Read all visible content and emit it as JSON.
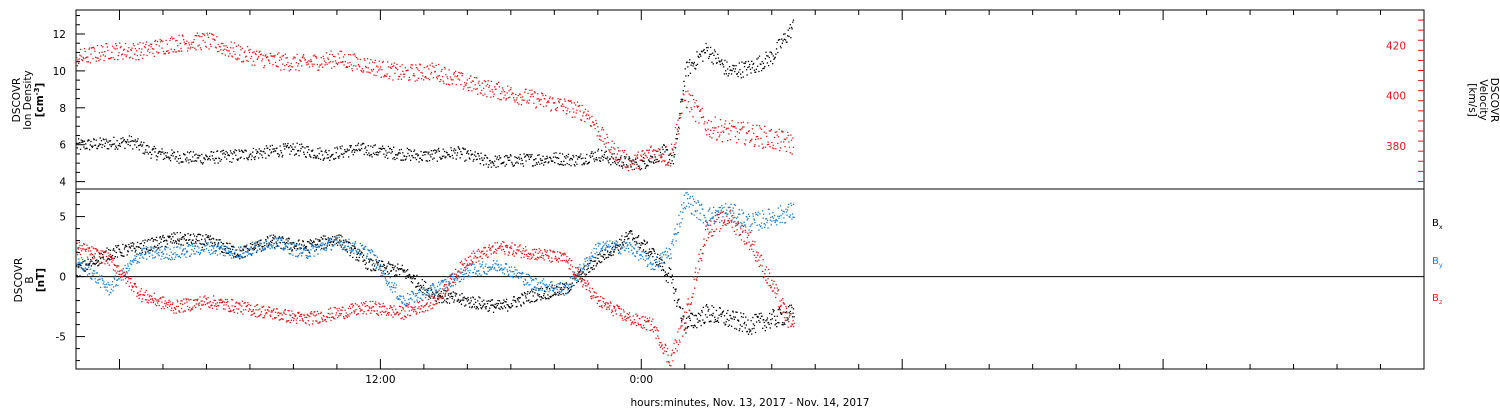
{
  "chart_data": [
    {
      "type": "scatter",
      "title": "",
      "xlabel": "",
      "x_range_hours": [
        -2,
        60
      ],
      "ylabel_left": [
        "DSCOVR",
        "Ion Density",
        "[cm",
        "-3",
        "]"
      ],
      "ylabel_right": [
        "DSCOVR",
        "Velocity",
        "[km/s]"
      ],
      "ylim_left": [
        3.6,
        13.3
      ],
      "ylim_right": [
        363,
        434
      ],
      "yticks_left": [
        4,
        6,
        8,
        10,
        12
      ],
      "yticks_right": [
        380,
        400,
        420
      ],
      "colors": {
        "density": "#000000",
        "velocity": "#e8181c"
      },
      "series": [
        {
          "axis": "left",
          "color": "#000000",
          "x": [
            -2,
            -0.5,
            0.5,
            1.5,
            2.5,
            3.5,
            5,
            6.5,
            8,
            9.5,
            11,
            12.5,
            14,
            15.5,
            17,
            18.5,
            20,
            21,
            22,
            23,
            24,
            25,
            25.5,
            26,
            27,
            28,
            29,
            30,
            31
          ],
          "y": [
            6.0,
            6.1,
            6.2,
            5.6,
            5.4,
            5.3,
            5.4,
            5.6,
            5.8,
            5.5,
            5.8,
            5.6,
            5.4,
            5.6,
            5.1,
            5.2,
            5.3,
            5.2,
            5.5,
            5.1,
            5.0,
            5.6,
            5.3,
            10.0,
            11.2,
            10.0,
            10.2,
            10.8,
            12.5
          ]
        },
        {
          "axis": "right",
          "color": "#e8181c",
          "x": [
            -2,
            -0.5,
            1,
            2.5,
            4,
            5.5,
            7,
            8.5,
            10,
            11.5,
            13,
            14.5,
            16,
            17.5,
            19,
            20.5,
            21.5,
            22.5,
            23.5,
            24.5,
            25.3,
            26,
            27,
            28,
            29,
            31
          ],
          "y": [
            415,
            418,
            418,
            421,
            422,
            417,
            414,
            413,
            415,
            412,
            409,
            410,
            405,
            402,
            399,
            396,
            393,
            380,
            373,
            378,
            376,
            400,
            388,
            386,
            385,
            381
          ]
        }
      ]
    },
    {
      "type": "scatter",
      "title": "",
      "xlabel": "hours:minutes, Nov. 13, 2017 - Nov. 14, 2017",
      "x_range_hours": [
        -2,
        60
      ],
      "ylabel_left": [
        "DSCOVR",
        "B",
        "[nT]"
      ],
      "ylim": [
        -7.7,
        7.3
      ],
      "yticks": [
        -5,
        0,
        5
      ],
      "xtick_labels": [
        "12:00",
        "0:00"
      ],
      "xticks_hours": [
        12,
        24
      ],
      "zero_line": true,
      "series": [
        {
          "name": "B",
          "subscript": "x",
          "color": "#000000",
          "x": [
            -2,
            -0.5,
            1,
            2.5,
            4,
            5.5,
            7,
            8.5,
            10,
            11.5,
            13,
            14.5,
            16,
            17.5,
            19,
            20.5,
            22,
            23.5,
            24.5,
            25.3,
            26,
            27,
            28,
            29,
            31
          ],
          "y": [
            0.5,
            2.0,
            2.5,
            3.2,
            3.0,
            2.0,
            3.0,
            2.5,
            3.2,
            1.0,
            0.5,
            -1.5,
            -2.0,
            -2.5,
            -1.5,
            -1.0,
            1.5,
            3.5,
            2.0,
            0.0,
            -4.0,
            -3.0,
            -3.5,
            -4.0,
            -3.0
          ]
        },
        {
          "name": "B",
          "subscript": "y",
          "color": "#1a7fd4",
          "x": [
            -2,
            -0.5,
            1,
            2.5,
            4,
            5.5,
            7,
            8.5,
            10,
            11.5,
            13,
            14.5,
            16,
            17.5,
            19,
            20.5,
            22,
            23.5,
            24.5,
            25.3,
            26,
            27,
            28,
            29,
            31
          ],
          "y": [
            1.5,
            -1.0,
            2.0,
            2.0,
            2.5,
            2.0,
            3.0,
            2.0,
            3.0,
            2.0,
            -2.0,
            -1.0,
            0.5,
            1.0,
            -0.5,
            -1.0,
            2.5,
            2.5,
            1.0,
            2.0,
            6.5,
            5.0,
            5.5,
            4.5,
            5.5
          ]
        },
        {
          "name": "B",
          "subscript": "z",
          "color": "#e8181c",
          "x": [
            -2,
            -0.5,
            1,
            2.5,
            4,
            5.5,
            7,
            8.5,
            10,
            11.5,
            13,
            14.5,
            16,
            17.5,
            19,
            20.5,
            22,
            23.5,
            24.5,
            25.3,
            26,
            27,
            28,
            29,
            31
          ],
          "y": [
            2.5,
            1.5,
            -1.5,
            -2.5,
            -2.0,
            -2.5,
            -3.0,
            -3.5,
            -3.0,
            -2.5,
            -3.0,
            -2.0,
            1.5,
            2.5,
            2.0,
            1.5,
            -2.0,
            -3.5,
            -4.0,
            -7.0,
            -3.5,
            4.0,
            5.0,
            3.0,
            -4.5
          ]
        }
      ]
    }
  ]
}
